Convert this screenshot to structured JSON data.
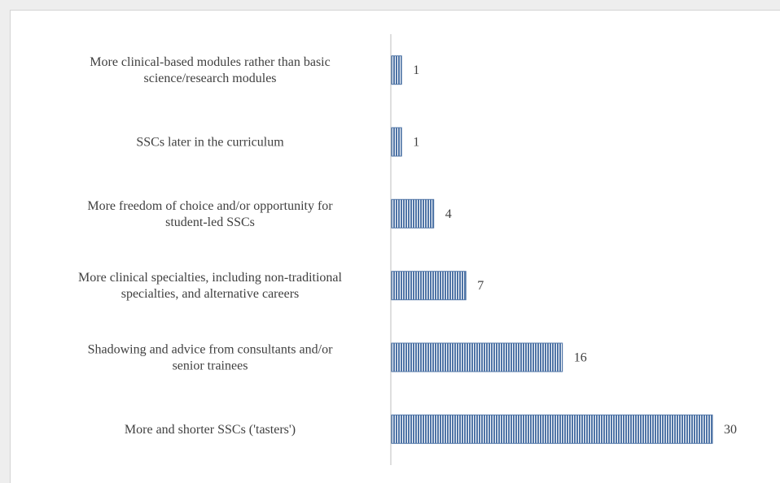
{
  "chart_data": {
    "type": "bar",
    "orientation": "horizontal",
    "categories": [
      [
        "More clinical-based modules rather than basic",
        "science/research modules"
      ],
      [
        "SSCs later in the curriculum"
      ],
      [
        "More freedom of choice and/or opportunity for",
        "student-led SSCs"
      ],
      [
        "More clinical specialties, including non-traditional",
        "specialties, and alternative careers"
      ],
      [
        "Shadowing and advice from consultants and/or",
        "senior trainees"
      ],
      [
        "More and shorter SSCs ('tasters')"
      ]
    ],
    "values": [
      1,
      1,
      4,
      7,
      16,
      30
    ],
    "xlim": [
      0,
      30
    ],
    "title": "",
    "xlabel": "",
    "ylabel": "",
    "bar_color": "#4f74a6",
    "bar_pattern": "vertical-stripes",
    "grid": false,
    "legend": "none"
  }
}
